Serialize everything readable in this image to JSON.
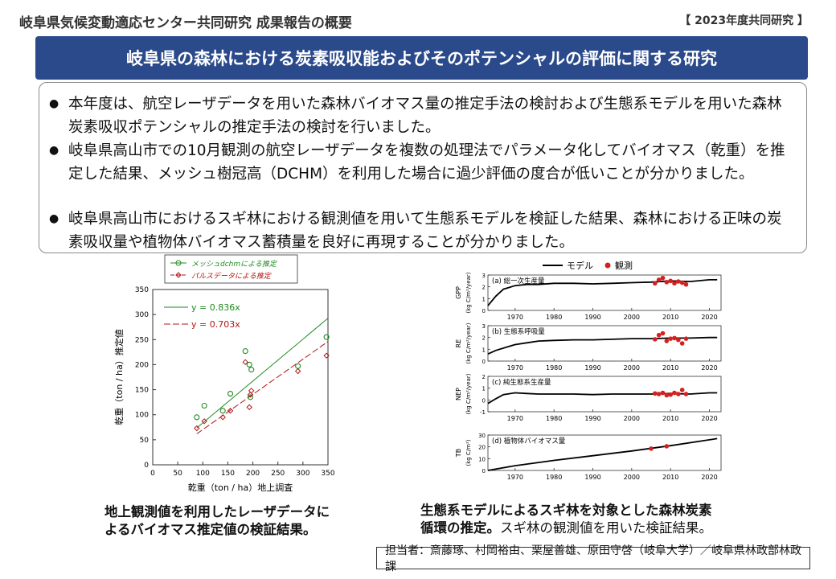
{
  "header": {
    "title": "岐阜県気候変動適応センター共同研究  成果報告の概要",
    "tag": "【 2023年度共同研究 】"
  },
  "banner": {
    "title": "岐阜県の森林における炭素吸収能およびそのポテンシャルの評価に関する研究"
  },
  "summary": {
    "bullets": [
      "本年度は、航空レーザデータを用いた森林バイオマス量の推定手法の検討および生態系モデルを用いた森林炭素吸収ポテンシャルの推定手法の検討を行いました。",
      "岐阜県高山市での10月観測の航空レーザデータを複数の処理法でパラメータ化してバイオマス（乾重）を推定した結果、メッシュ樹冠高（DCHM）を利用した場合に過少評価の度合が低いことが分かりました。",
      "岐阜県高山市におけるスギ林における観測値を用いて生態系モデルを検証した結果、森林における正味の炭素吸収量や植物体バイオマス蓄積量を良好に再現することが分かりました。"
    ]
  },
  "chart_data": [
    {
      "type": "scatter",
      "xlabel": "乾重（ton / ha）地上調査",
      "ylabel": "乾重（ton / ha）推定値",
      "xlim": [
        0,
        350
      ],
      "ylim": [
        0,
        350
      ],
      "xticks": [
        0,
        50,
        100,
        150,
        200,
        250,
        300,
        350
      ],
      "yticks": [
        0,
        50,
        100,
        150,
        200,
        250,
        300,
        350
      ],
      "grid": false,
      "legend": "top",
      "colors": {
        "dchm": "#1f8a1f",
        "pulse": "#b01515"
      },
      "series": [
        {
          "name": "メッシュdchmによる推定",
          "marker": "circle",
          "fit_label": "y = 0.836x",
          "slope": 0.836,
          "x": [
            88,
            103,
            140,
            155,
            185,
            193,
            195,
            197,
            290,
            347
          ],
          "y": [
            95,
            118,
            108,
            142,
            227,
            200,
            135,
            190,
            197,
            255
          ]
        },
        {
          "name": "パルスデータによる推定",
          "marker": "diamond",
          "fit_label": "y = 0.703x",
          "slope": 0.703,
          "x": [
            88,
            103,
            140,
            155,
            185,
            193,
            195,
            197,
            290,
            347
          ],
          "y": [
            73,
            87,
            95,
            108,
            205,
            115,
            140,
            148,
            187,
            218
          ]
        }
      ]
    },
    {
      "type": "line",
      "legend": "top",
      "legend_labels": [
        "モデル",
        "観測"
      ],
      "colors": {
        "model": "#000000",
        "obs": "#d42020"
      },
      "xticks": [
        1970,
        1980,
        1990,
        2000,
        2010,
        2020
      ],
      "xlim": [
        1963,
        2023
      ],
      "panels": [
        {
          "label": "(a) 総一次生産量",
          "ylabel": "GPP",
          "yunit": "(kg C/m²/year)",
          "ylim": [
            0,
            3
          ],
          "yticks": [
            0,
            1,
            2,
            3
          ],
          "model": {
            "x": [
              1963,
              1965,
              1967,
              1970,
              1973,
              1976,
              1980,
              1985,
              1990,
              1995,
              2000,
              2005,
              2010,
              2015,
              2020,
              2022
            ],
            "y": [
              0.4,
              1.2,
              1.8,
              2.1,
              2.2,
              2.2,
              2.3,
              2.3,
              2.25,
              2.3,
              2.35,
              2.4,
              2.5,
              2.45,
              2.6,
              2.6
            ]
          },
          "obs": {
            "x": [
              2006,
              2007,
              2008,
              2009,
              2010,
              2011,
              2012,
              2013,
              2014
            ],
            "y": [
              2.3,
              2.6,
              2.75,
              2.4,
              2.5,
              2.3,
              2.45,
              2.35,
              2.2
            ]
          }
        },
        {
          "label": "(b) 生態系呼吸量",
          "ylabel": "RE",
          "yunit": "(kg C/m²/year)",
          "ylim": [
            0,
            3
          ],
          "yticks": [
            0,
            1,
            2,
            3
          ],
          "model": {
            "x": [
              1963,
              1965,
              1968,
              1970,
              1973,
              1976,
              1980,
              1985,
              1990,
              1995,
              2000,
              2005,
              2010,
              2015,
              2020,
              2022
            ],
            "y": [
              0.6,
              0.9,
              1.2,
              1.4,
              1.55,
              1.7,
              1.75,
              1.8,
              1.8,
              1.85,
              1.9,
              1.9,
              1.95,
              1.95,
              2.0,
              2.0
            ]
          },
          "obs": {
            "x": [
              2006,
              2007,
              2008,
              2009,
              2010,
              2011,
              2012,
              2013,
              2014
            ],
            "y": [
              1.85,
              2.2,
              2.35,
              1.7,
              1.9,
              1.95,
              1.8,
              1.5,
              1.9
            ]
          }
        },
        {
          "label": "(c) 純生態系生産量",
          "ylabel": "NEP",
          "yunit": "(kg C/m²/year)",
          "ylim": [
            -1,
            2
          ],
          "yticks": [
            -1,
            0,
            1,
            2
          ],
          "model": {
            "x": [
              1963,
              1965,
              1967,
              1970,
              1973,
              1976,
              1980,
              1985,
              1990,
              1995,
              2000,
              2005,
              2010,
              2015,
              2020,
              2022
            ],
            "y": [
              -0.3,
              0.1,
              0.45,
              0.6,
              0.55,
              0.5,
              0.5,
              0.5,
              0.45,
              0.5,
              0.5,
              0.5,
              0.55,
              0.5,
              0.6,
              0.6
            ]
          },
          "obs": {
            "x": [
              2006,
              2007,
              2008,
              2009,
              2010,
              2011,
              2012,
              2013,
              2014
            ],
            "y": [
              0.55,
              0.5,
              0.6,
              0.4,
              0.45,
              0.6,
              0.5,
              0.85,
              0.5
            ]
          }
        },
        {
          "label": "(d) 植物体バイオマス量",
          "ylabel": "TB",
          "yunit": "(kg C/m²)",
          "ylim": [
            0,
            30
          ],
          "yticks": [
            0,
            10,
            20,
            30
          ],
          "model": {
            "x": [
              1963,
              1970,
              1980,
              1990,
              2000,
              2010,
              2022
            ],
            "y": [
              0,
              4,
              8.5,
              12.5,
              16.5,
              21,
              27
            ]
          },
          "obs": {
            "x": [
              2005,
              2009
            ],
            "y": [
              18.5,
              20.5
            ]
          }
        }
      ]
    }
  ],
  "captions": {
    "left": [
      "地上観測値を利用したレーザデータに",
      "よるバイオマス推定値の検証結果。"
    ],
    "right_line1": "生態系モデルによるスギ林を対象とした森林炭素",
    "right_line2_bold": "循環の推定。",
    "right_line2_normal": "スギ林の観測値を用いた検証結果。"
  },
  "credit": "担当者：斎藤琢、村岡裕由、栗屋善雄、原田守啓（岐阜大学）／岐阜県林政部林政課"
}
